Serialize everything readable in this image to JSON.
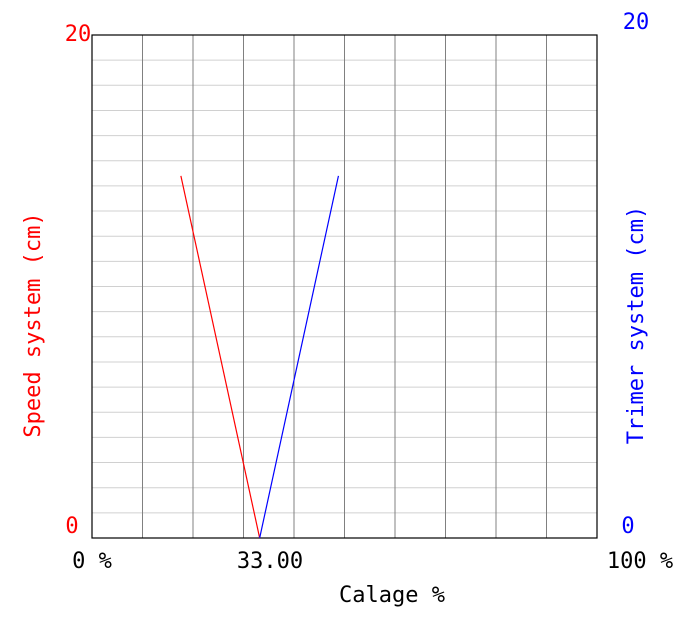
{
  "chart_data": {
    "type": "line",
    "xlabel": "Calage %",
    "ylabel_left": "Speed system (cm)",
    "ylabel_right": "Trimer system (cm)",
    "xlim": [
      0,
      100
    ],
    "ylim_left": [
      0,
      20
    ],
    "ylim_right": [
      0,
      20
    ],
    "x_tick_labels": [
      {
        "value": 0,
        "label": "0 %"
      },
      {
        "value": 33,
        "label": "33.00"
      },
      {
        "value": 100,
        "label": "100 %"
      }
    ],
    "y_left_tick_labels": [
      {
        "value": 0,
        "label": "0"
      },
      {
        "value": 20,
        "label": "20"
      }
    ],
    "y_right_tick_labels": [
      {
        "value": 0,
        "label": "0"
      },
      {
        "value": 20,
        "label": "20"
      }
    ],
    "grid": true,
    "series": [
      {
        "axis": "left",
        "color": "#ff0000",
        "x": [
          17.6,
          33.2
        ],
        "y": [
          14.4,
          0
        ]
      },
      {
        "axis": "right",
        "color": "#0000ff",
        "x": [
          33.2,
          48.8
        ],
        "y": [
          0,
          14.4
        ]
      }
    ]
  },
  "colors": {
    "left_axis": "#ff0000",
    "right_axis": "#0000ff",
    "text": "#000000",
    "major_grid": "#808080",
    "minor_grid": "#d0d0d0"
  }
}
